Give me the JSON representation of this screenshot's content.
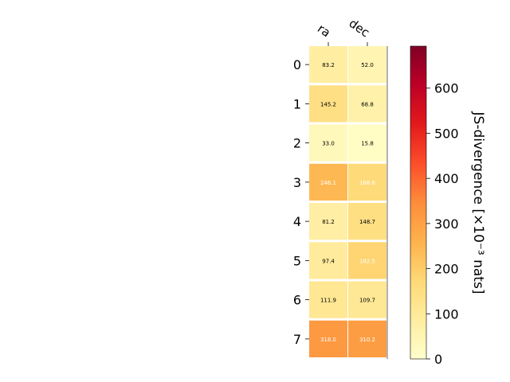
{
  "chart_data": {
    "type": "heatmap",
    "columns": [
      "ra",
      "dec"
    ],
    "rows": [
      "0",
      "1",
      "2",
      "3",
      "4",
      "5",
      "6",
      "7"
    ],
    "values": [
      [
        83.2,
        52.0
      ],
      [
        145.2,
        68.8
      ],
      [
        33.0,
        15.8
      ],
      [
        246.1,
        168.6
      ],
      [
        81.2,
        148.7
      ],
      [
        97.4,
        182.5
      ],
      [
        111.9,
        109.7
      ],
      [
        318.0,
        310.2
      ]
    ],
    "value_labels": [
      [
        "83.2",
        "52.0"
      ],
      [
        "145.2",
        "68.8"
      ],
      [
        "33.0",
        "15.8"
      ],
      [
        "246.1",
        "168.6"
      ],
      [
        "81.2",
        "148.7"
      ],
      [
        "97.4",
        "182.5"
      ],
      [
        "111.9",
        "109.7"
      ],
      [
        "318.0",
        "310.2"
      ]
    ],
    "colorbar": {
      "label": "JS-divergence [×10⁻³ nats]",
      "range": [
        0,
        693
      ],
      "ticks": [
        "0",
        "100",
        "200",
        "300",
        "400",
        "500",
        "600"
      ],
      "tick_values": [
        0,
        100,
        200,
        300,
        400,
        500,
        600
      ],
      "colormap": "YlOrRd",
      "stops": [
        "#ffffcc",
        "#ffeda0",
        "#fed976",
        "#feb24c",
        "#fd8d3c",
        "#fc4e2a",
        "#e31a1c",
        "#bd0026",
        "#800026"
      ]
    }
  }
}
